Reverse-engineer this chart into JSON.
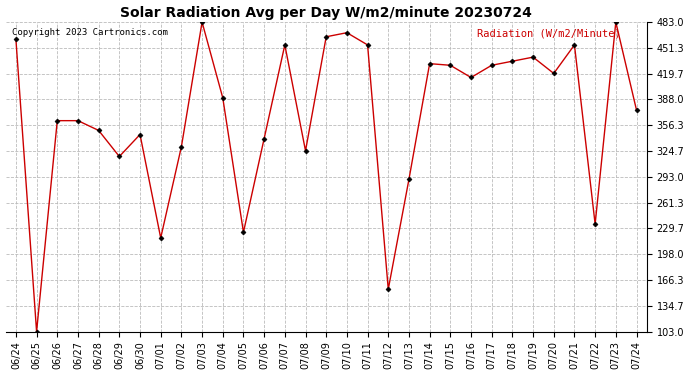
{
  "title": "Solar Radiation Avg per Day W/m2/minute 20230724",
  "copyright": "Copyright 2023 Cartronics.com",
  "legend_label": "Radiation (W/m2/Minute)",
  "dates": [
    "06/24",
    "06/25",
    "06/26",
    "06/27",
    "06/28",
    "06/29",
    "06/30",
    "07/01",
    "07/02",
    "07/03",
    "07/04",
    "07/05",
    "07/06",
    "07/07",
    "07/08",
    "07/09",
    "07/10",
    "07/11",
    "07/12",
    "07/13",
    "07/14",
    "07/15",
    "07/16",
    "07/17",
    "07/18",
    "07/19",
    "07/20",
    "07/21",
    "07/22",
    "07/23",
    "07/24"
  ],
  "values": [
    462,
    103,
    362,
    362,
    350,
    318,
    345,
    218,
    330,
    483,
    390,
    225,
    340,
    455,
    325,
    465,
    470,
    455,
    155,
    290,
    432,
    430,
    415,
    430,
    435,
    440,
    420,
    455,
    235,
    483,
    375
  ],
  "line_color": "#cc0000",
  "marker_color": "#000000",
  "bg_color": "#ffffff",
  "grid_color": "#bbbbbb",
  "title_color": "#000000",
  "copyright_color": "#000000",
  "legend_color": "#cc0000",
  "ylim": [
    103.0,
    483.0
  ],
  "yticks": [
    103.0,
    134.7,
    166.3,
    198.0,
    229.7,
    261.3,
    293.0,
    324.7,
    356.3,
    388.0,
    419.7,
    451.3,
    483.0
  ]
}
